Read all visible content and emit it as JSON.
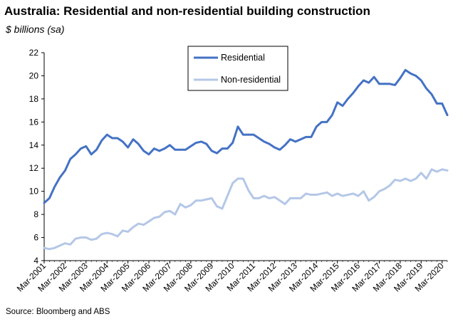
{
  "title": "Australia: Residential and non-residential building construction",
  "subtitle": "$ billions (sa)",
  "source": "Source: Bloomberg and ABS",
  "chart_data": {
    "type": "line",
    "ylim": [
      4,
      22
    ],
    "y_ticks": [
      "4",
      "6",
      "8",
      "10",
      "12",
      "14",
      "16",
      "18",
      "20",
      "22"
    ],
    "x_tick_labels": [
      "Mar-2001",
      "Mar-2002",
      "Mar-2003",
      "Mar-2004",
      "Mar-2005",
      "Mar-2006",
      "Mar-2007",
      "Mar-2008",
      "Mar-2009",
      "Mar-2010",
      "Mar-2011",
      "Mar-2012",
      "Mar-2013",
      "Mar-2014",
      "Mar-2015",
      "Mar-2016",
      "Mar-2017",
      "Mar-2018",
      "Mar-2019",
      "Mar-2020"
    ],
    "x_start": "Mar-2001",
    "x_end": "Jun-2020",
    "grid": false,
    "legend_position": "top-center",
    "series": [
      {
        "name": "Residential",
        "color": "#4472c4",
        "values": [
          9.0,
          9.4,
          10.4,
          11.2,
          11.8,
          12.8,
          13.2,
          13.7,
          13.9,
          13.2,
          13.6,
          14.4,
          14.9,
          14.6,
          14.6,
          14.3,
          13.8,
          14.5,
          14.1,
          13.5,
          13.2,
          13.7,
          13.5,
          13.7,
          14.0,
          13.6,
          13.6,
          13.6,
          13.9,
          14.2,
          14.3,
          14.1,
          13.5,
          13.3,
          13.7,
          13.7,
          14.2,
          15.6,
          14.9,
          14.9,
          14.9,
          14.6,
          14.3,
          14.1,
          13.8,
          13.6,
          14.0,
          14.5,
          14.3,
          14.5,
          14.7,
          14.7,
          15.6,
          16.0,
          16.0,
          16.6,
          17.7,
          17.4,
          18.0,
          18.5,
          19.1,
          19.6,
          19.4,
          19.9,
          19.3,
          19.3,
          19.3,
          19.2,
          19.8,
          20.5,
          20.2,
          20.0,
          19.6,
          18.9,
          18.4,
          17.6,
          17.6,
          16.6
        ]
      },
      {
        "name": "Non-residential",
        "color": "#b4c7e7",
        "values": [
          5.1,
          5.0,
          5.1,
          5.3,
          5.5,
          5.4,
          5.9,
          6.0,
          6.0,
          5.8,
          5.9,
          6.3,
          6.4,
          6.3,
          6.1,
          6.6,
          6.5,
          6.9,
          7.2,
          7.1,
          7.4,
          7.7,
          7.8,
          8.2,
          8.3,
          8.0,
          8.9,
          8.6,
          8.8,
          9.2,
          9.2,
          9.3,
          9.4,
          8.7,
          8.5,
          9.6,
          10.7,
          11.1,
          11.1,
          10.1,
          9.4,
          9.4,
          9.6,
          9.4,
          9.5,
          9.2,
          8.9,
          9.4,
          9.4,
          9.4,
          9.8,
          9.7,
          9.7,
          9.8,
          9.9,
          9.6,
          9.8,
          9.6,
          9.7,
          9.8,
          9.6,
          10.0,
          9.2,
          9.5,
          10.0,
          10.2,
          10.5,
          11.0,
          10.9,
          11.1,
          10.9,
          11.1,
          11.6,
          11.1,
          11.9,
          11.7,
          11.9,
          11.8
        ]
      }
    ]
  }
}
